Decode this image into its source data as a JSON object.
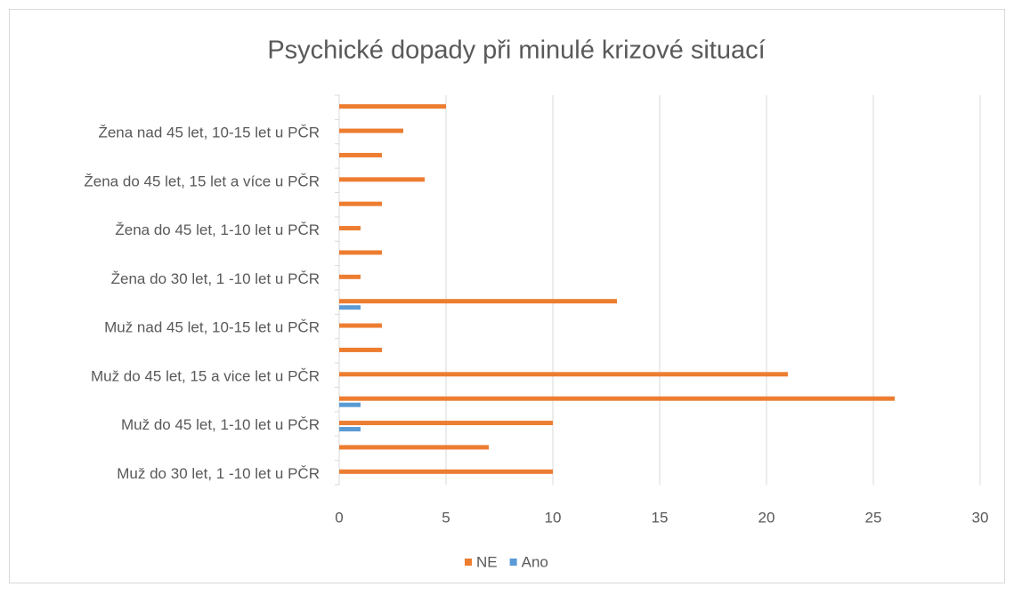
{
  "chart_data": {
    "type": "bar",
    "orientation": "horizontal",
    "title": "Psychické dopady při minulé krizové situací",
    "categories": [
      "Muž do 30 let, 1 -10 let u PČR",
      null,
      "Muž do 45 let, 1-10 let u PČR",
      null,
      "Muž do 45 let, 15 a vice let u  PČR",
      null,
      "Muž nad 45 let, 10-15 let u PČR",
      null,
      "Žena do 30 let, 1 -10 let u PČR",
      null,
      "Žena do 45 let, 1-10 let u PČR",
      null,
      "Žena do 45 let, 15 let a více u  PČR",
      null,
      "Žena nad 45 let, 10-15 let u PČR",
      null
    ],
    "series": [
      {
        "name": "NE",
        "color": "#ed7d31",
        "values": [
          10,
          7,
          10,
          26,
          21,
          2,
          2,
          13,
          1,
          2,
          1,
          2,
          4,
          2,
          3,
          5
        ]
      },
      {
        "name": "Ano",
        "color": "#5b9bd5",
        "values": [
          0,
          0,
          1,
          1,
          0,
          0,
          0,
          1,
          0,
          0,
          0,
          0,
          0,
          0,
          0,
          0
        ]
      }
    ],
    "xlim": [
      0,
      30
    ],
    "xticks": [
      0,
      5,
      10,
      15,
      20,
      25,
      30
    ],
    "grid": true,
    "legend": "bottom"
  }
}
